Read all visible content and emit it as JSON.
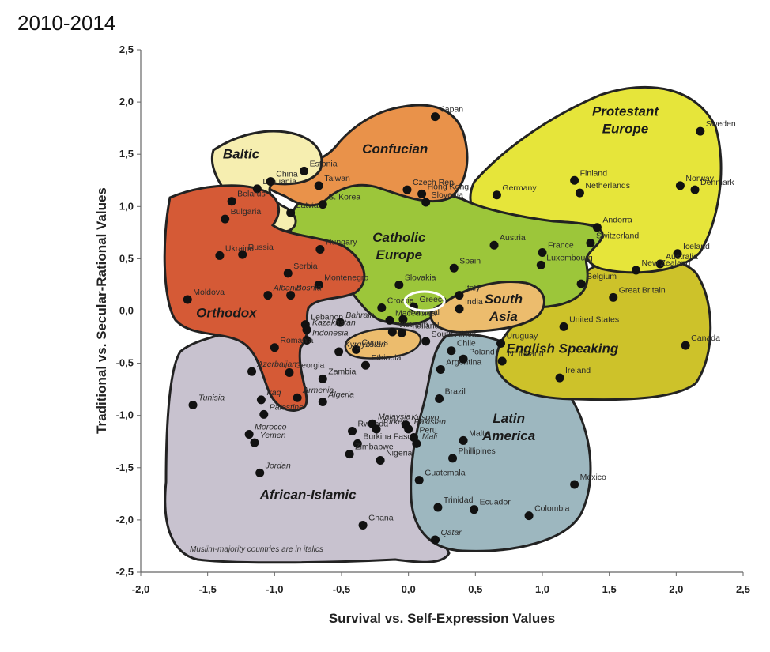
{
  "title": "2010-2014",
  "note": "Muslim-majority countries are in italics",
  "chart_data": {
    "type": "scatter",
    "title": "2010-2014",
    "xlabel": "Survival vs. Self-Expression Values",
    "ylabel": "Traditional vs. Secular-Rational Values",
    "xlim": [
      -2.0,
      2.5
    ],
    "ylim": [
      -2.5,
      2.5
    ],
    "xticks": [
      "-2,0",
      "-1,5",
      "-1,0",
      "-0,5",
      "0,0",
      "0,5",
      "1,0",
      "1,5",
      "2,0",
      "2,5"
    ],
    "yticks": [
      "2,5",
      "2,0",
      "1,5",
      "1,0",
      "0,5",
      "0,0",
      "-0,5",
      "-1,0",
      "-1,5",
      "-2,0",
      "-2,5"
    ],
    "regions": [
      {
        "name": "Baltic",
        "color": "#f6eeb0",
        "x": -1.25,
        "y": 1.46
      },
      {
        "name": "Confucian",
        "color": "#e9924a",
        "x": -0.1,
        "y": 1.51
      },
      {
        "name": "Protestant\nEurope",
        "color": "#e6e53a",
        "x": 1.62,
        "y": 1.87
      },
      {
        "name": "Catholic\nEurope",
        "color": "#9cc63a",
        "x": -0.07,
        "y": 0.66
      },
      {
        "name": "Orthodox",
        "color": "#d55a36",
        "x": -1.36,
        "y": -0.06
      },
      {
        "name": "South\nAsia",
        "color": "#ecbc6d",
        "x": 0.71,
        "y": 0.07
      },
      {
        "name": "English Speaking",
        "color": "#cdc22a",
        "x": 1.15,
        "y": -0.4
      },
      {
        "name": "Latin\nAmerica",
        "color": "#9db7bf",
        "x": 0.75,
        "y": -1.07
      },
      {
        "name": "African-Islamic",
        "color": "#c8c2cf",
        "x": -0.75,
        "y": -1.8
      }
    ],
    "points": [
      {
        "name": "Japan",
        "x": 0.2,
        "y": 1.86,
        "italic": false
      },
      {
        "name": "Sweden",
        "x": 2.18,
        "y": 1.72,
        "italic": false
      },
      {
        "name": "Estonia",
        "x": -0.78,
        "y": 1.34,
        "italic": false
      },
      {
        "name": "Lithuania",
        "x": -1.13,
        "y": 1.17,
        "italic": false
      },
      {
        "name": "China",
        "x": -1.03,
        "y": 1.24,
        "italic": false
      },
      {
        "name": "Taiwan",
        "x": -0.67,
        "y": 1.2,
        "italic": false
      },
      {
        "name": "S. Korea",
        "x": -0.64,
        "y": 1.02,
        "italic": false
      },
      {
        "name": "Latvia",
        "x": -0.88,
        "y": 0.94,
        "italic": false
      },
      {
        "name": "Belarus",
        "x": -1.32,
        "y": 1.05,
        "italic": false
      },
      {
        "name": "Bulgaria",
        "x": -1.37,
        "y": 0.88,
        "italic": false
      },
      {
        "name": "Hong Kong",
        "x": 0.1,
        "y": 1.12,
        "italic": false
      },
      {
        "name": "Czech Rep.",
        "x": -0.01,
        "y": 1.16,
        "italic": false
      },
      {
        "name": "Slovenia",
        "x": 0.13,
        "y": 1.04,
        "italic": false
      },
      {
        "name": "Finland",
        "x": 1.24,
        "y": 1.25,
        "italic": false
      },
      {
        "name": "Netherlands",
        "x": 1.28,
        "y": 1.13,
        "italic": false
      },
      {
        "name": "Norway",
        "x": 2.03,
        "y": 1.2,
        "italic": false
      },
      {
        "name": "Denmark",
        "x": 2.14,
        "y": 1.16,
        "italic": false
      },
      {
        "name": "Germany",
        "x": 0.66,
        "y": 1.11,
        "italic": false
      },
      {
        "name": "Andorra",
        "x": 1.41,
        "y": 0.8,
        "italic": false
      },
      {
        "name": "Switzerland",
        "x": 1.36,
        "y": 0.65,
        "italic": false
      },
      {
        "name": "Iceland",
        "x": 2.01,
        "y": 0.55,
        "italic": false
      },
      {
        "name": "Australia",
        "x": 1.88,
        "y": 0.45,
        "italic": false
      },
      {
        "name": "New Zealand",
        "x": 1.7,
        "y": 0.39,
        "italic": false
      },
      {
        "name": "Great Britain",
        "x": 1.53,
        "y": 0.13,
        "italic": false
      },
      {
        "name": "United States",
        "x": 1.16,
        "y": -0.15,
        "italic": false
      },
      {
        "name": "Canada",
        "x": 2.07,
        "y": -0.33,
        "italic": false
      },
      {
        "name": "N. Ireland",
        "x": 0.7,
        "y": -0.48,
        "italic": false
      },
      {
        "name": "Ireland",
        "x": 1.13,
        "y": -0.64,
        "italic": false
      },
      {
        "name": "Austria",
        "x": 0.64,
        "y": 0.63,
        "italic": false
      },
      {
        "name": "France",
        "x": 1.0,
        "y": 0.56,
        "italic": false
      },
      {
        "name": "Luxembourg",
        "x": 0.99,
        "y": 0.44,
        "italic": false
      },
      {
        "name": "Belgium",
        "x": 1.29,
        "y": 0.26,
        "italic": false
      },
      {
        "name": "Spain",
        "x": 0.34,
        "y": 0.41,
        "italic": false
      },
      {
        "name": "Italy",
        "x": 0.38,
        "y": 0.15,
        "italic": false
      },
      {
        "name": "India",
        "x": 0.38,
        "y": 0.02,
        "italic": false
      },
      {
        "name": "Hungary",
        "x": -0.66,
        "y": 0.59,
        "italic": false
      },
      {
        "name": "Ukraine",
        "x": -1.41,
        "y": 0.53,
        "italic": false
      },
      {
        "name": "Russia",
        "x": -1.24,
        "y": 0.54,
        "italic": false
      },
      {
        "name": "Serbia",
        "x": -0.9,
        "y": 0.36,
        "italic": false
      },
      {
        "name": "Montenegro",
        "x": -0.67,
        "y": 0.25,
        "italic": false
      },
      {
        "name": "Moldova",
        "x": -1.65,
        "y": 0.11,
        "italic": false
      },
      {
        "name": "Albania",
        "x": -1.05,
        "y": 0.15,
        "italic": true
      },
      {
        "name": "Bosnia",
        "x": -0.88,
        "y": 0.15,
        "italic": true
      },
      {
        "name": "Slovakia",
        "x": -0.07,
        "y": 0.25,
        "italic": false
      },
      {
        "name": "Croatia",
        "x": -0.2,
        "y": 0.03,
        "italic": false
      },
      {
        "name": "Greece",
        "x": 0.04,
        "y": 0.04,
        "italic": false
      },
      {
        "name": "Portugal",
        "x": -0.04,
        "y": -0.08,
        "italic": false
      },
      {
        "name": "Macedonia",
        "x": -0.14,
        "y": -0.09,
        "italic": false
      },
      {
        "name": "Vietnam",
        "x": -0.12,
        "y": -0.2,
        "italic": false
      },
      {
        "name": "Thailand",
        "x": -0.05,
        "y": -0.21,
        "italic": false
      },
      {
        "name": "South Africa",
        "x": 0.13,
        "y": -0.29,
        "italic": false
      },
      {
        "name": "Lebanon",
        "x": -0.77,
        "y": -0.13,
        "italic": false
      },
      {
        "name": "Bahrain",
        "x": -0.51,
        "y": -0.11,
        "italic": true
      },
      {
        "name": "Kazakhstan",
        "x": -0.76,
        "y": -0.18,
        "italic": true
      },
      {
        "name": "Indonesia",
        "x": -0.76,
        "y": -0.28,
        "italic": true
      },
      {
        "name": "Cyprus",
        "x": -0.39,
        "y": -0.37,
        "italic": false
      },
      {
        "name": "Kyrgyzstan",
        "x": -0.52,
        "y": -0.39,
        "italic": true
      },
      {
        "name": "Ethiopia",
        "x": -0.32,
        "y": -0.52,
        "italic": false
      },
      {
        "name": "Romania",
        "x": -1.0,
        "y": -0.35,
        "italic": false
      },
      {
        "name": "Georgia",
        "x": -0.89,
        "y": -0.59,
        "italic": false
      },
      {
        "name": "Armenia",
        "x": -0.83,
        "y": -0.83,
        "italic": true
      },
      {
        "name": "Azerbaijan",
        "x": -1.17,
        "y": -0.58,
        "italic": true
      },
      {
        "name": "Zambia",
        "x": -0.64,
        "y": -0.65,
        "italic": false
      },
      {
        "name": "Algeria",
        "x": -0.64,
        "y": -0.87,
        "italic": true
      },
      {
        "name": "Tunisia",
        "x": -1.61,
        "y": -0.9,
        "italic": true
      },
      {
        "name": "Iraq",
        "x": -1.1,
        "y": -0.85,
        "italic": true
      },
      {
        "name": "Palestine",
        "x": -1.08,
        "y": -0.99,
        "italic": true
      },
      {
        "name": "Morocco",
        "x": -1.19,
        "y": -1.18,
        "italic": true
      },
      {
        "name": "Yemen",
        "x": -1.15,
        "y": -1.26,
        "italic": true
      },
      {
        "name": "Jordan",
        "x": -1.11,
        "y": -1.55,
        "italic": true
      },
      {
        "name": "Rwanda",
        "x": -0.42,
        "y": -1.15,
        "italic": false
      },
      {
        "name": "Burkina Faso",
        "x": -0.38,
        "y": -1.27,
        "italic": false
      },
      {
        "name": "Zimbabwe",
        "x": -0.44,
        "y": -1.37,
        "italic": false
      },
      {
        "name": "Nigeria",
        "x": -0.21,
        "y": -1.43,
        "italic": false
      },
      {
        "name": "Malaysia",
        "x": -0.27,
        "y": -1.08,
        "italic": true
      },
      {
        "name": "Turkey",
        "x": -0.24,
        "y": -1.13,
        "italic": true
      },
      {
        "name": "Kosovo",
        "x": -0.02,
        "y": -1.09,
        "italic": true
      },
      {
        "name": "Pakistan",
        "x": 0.0,
        "y": -1.13,
        "italic": true
      },
      {
        "name": "Mali",
        "x": 0.06,
        "y": -1.27,
        "italic": true
      },
      {
        "name": "Peru",
        "x": 0.04,
        "y": -1.21,
        "italic": false
      },
      {
        "name": "Ghana",
        "x": -0.34,
        "y": -2.05,
        "italic": false
      },
      {
        "name": "Qatar",
        "x": 0.2,
        "y": -2.19,
        "italic": true
      },
      {
        "name": "Chile",
        "x": 0.32,
        "y": -0.38,
        "italic": false
      },
      {
        "name": "Argentina",
        "x": 0.24,
        "y": -0.56,
        "italic": false
      },
      {
        "name": "Poland",
        "x": 0.41,
        "y": -0.46,
        "italic": false
      },
      {
        "name": "Uruguay",
        "x": 0.69,
        "y": -0.31,
        "italic": false
      },
      {
        "name": "Brazil",
        "x": 0.23,
        "y": -0.84,
        "italic": false
      },
      {
        "name": "Malta",
        "x": 0.41,
        "y": -1.24,
        "italic": false
      },
      {
        "name": "Phillipines",
        "x": 0.33,
        "y": -1.41,
        "italic": false
      },
      {
        "name": "Guatemala",
        "x": 0.08,
        "y": -1.62,
        "italic": false
      },
      {
        "name": "Mexico",
        "x": 1.24,
        "y": -1.66,
        "italic": false
      },
      {
        "name": "Ecuador",
        "x": 0.49,
        "y": -1.9,
        "italic": false
      },
      {
        "name": "Colombia",
        "x": 0.9,
        "y": -1.96,
        "italic": false
      },
      {
        "name": "Trinidad",
        "x": 0.22,
        "y": -1.88,
        "italic": false
      }
    ]
  }
}
